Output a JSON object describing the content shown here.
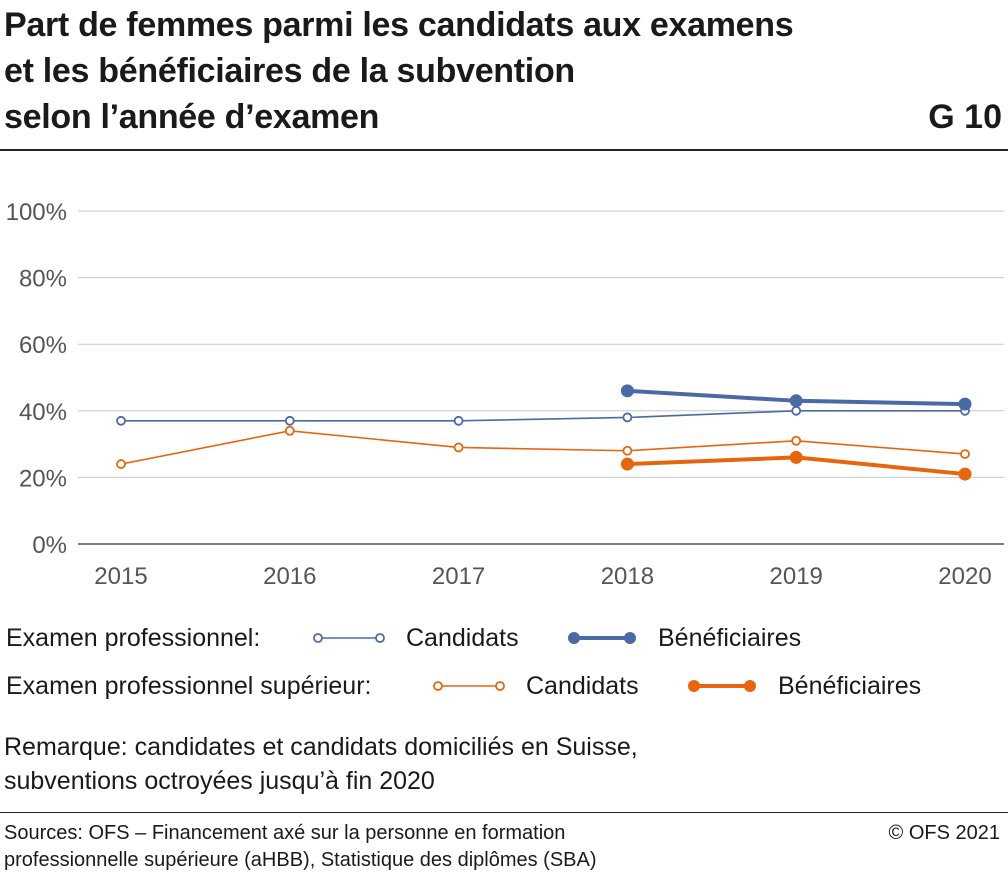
{
  "title_lines": [
    "Part de femmes parmi les candidats aux examens",
    "et les bénéficiaires de la subvention",
    "selon l’année d’examen"
  ],
  "chart_id": "G 10",
  "legend": {
    "group1_label": "Examen professionnel:",
    "group2_label": "Examen professionnel supérieur:",
    "candidats": "Candidats",
    "beneficiaires": "Bénéficiaires"
  },
  "note_lines": [
    "Remarque: candidates et candidats domiciliés en Suisse,",
    "subventions octroyées jusqu’à fin 2020"
  ],
  "sources_lines": [
    "Sources: OFS – Financement axé sur la personne en formation",
    "professionnelle supérieure (aHBB), Statistique des diplômes (SBA)"
  ],
  "copyright": "© OFS 2021",
  "colors": {
    "blue": "#4a6aa5",
    "orange": "#e8650e",
    "grid": "#c8c8c8",
    "axis": "#555555"
  },
  "chart_data": {
    "type": "line",
    "x": [
      2015,
      2016,
      2017,
      2018,
      2019,
      2020
    ],
    "ylim": [
      0,
      100
    ],
    "yticks": [
      0,
      20,
      40,
      60,
      80,
      100
    ],
    "ytick_labels": [
      "0%",
      "20%",
      "40%",
      "60%",
      "80%",
      "100%"
    ],
    "xtick_labels": [
      "2015",
      "2016",
      "2017",
      "2018",
      "2019",
      "2020"
    ],
    "grid": true,
    "legend_position": "bottom",
    "series": [
      {
        "name": "Candidats",
        "group": "Examen professionnel",
        "color": "#4a6aa5",
        "style": "thin-open",
        "x": [
          2015,
          2016,
          2017,
          2018,
          2019,
          2020
        ],
        "values": [
          37,
          37,
          37,
          38,
          40,
          40
        ]
      },
      {
        "name": "Bénéficiaires",
        "group": "Examen professionnel",
        "color": "#4a6aa5",
        "style": "thick-filled",
        "x": [
          2018,
          2019,
          2020
        ],
        "values": [
          46,
          43,
          42
        ]
      },
      {
        "name": "Candidats",
        "group": "Examen professionnel supérieur",
        "color": "#e8650e",
        "style": "thin-open",
        "x": [
          2015,
          2016,
          2017,
          2018,
          2019,
          2020
        ],
        "values": [
          24,
          34,
          29,
          28,
          31,
          27
        ]
      },
      {
        "name": "Bénéficiaires",
        "group": "Examen professionnel supérieur",
        "color": "#e8650e",
        "style": "thick-filled",
        "x": [
          2018,
          2019,
          2020
        ],
        "values": [
          24,
          26,
          21
        ]
      }
    ]
  }
}
